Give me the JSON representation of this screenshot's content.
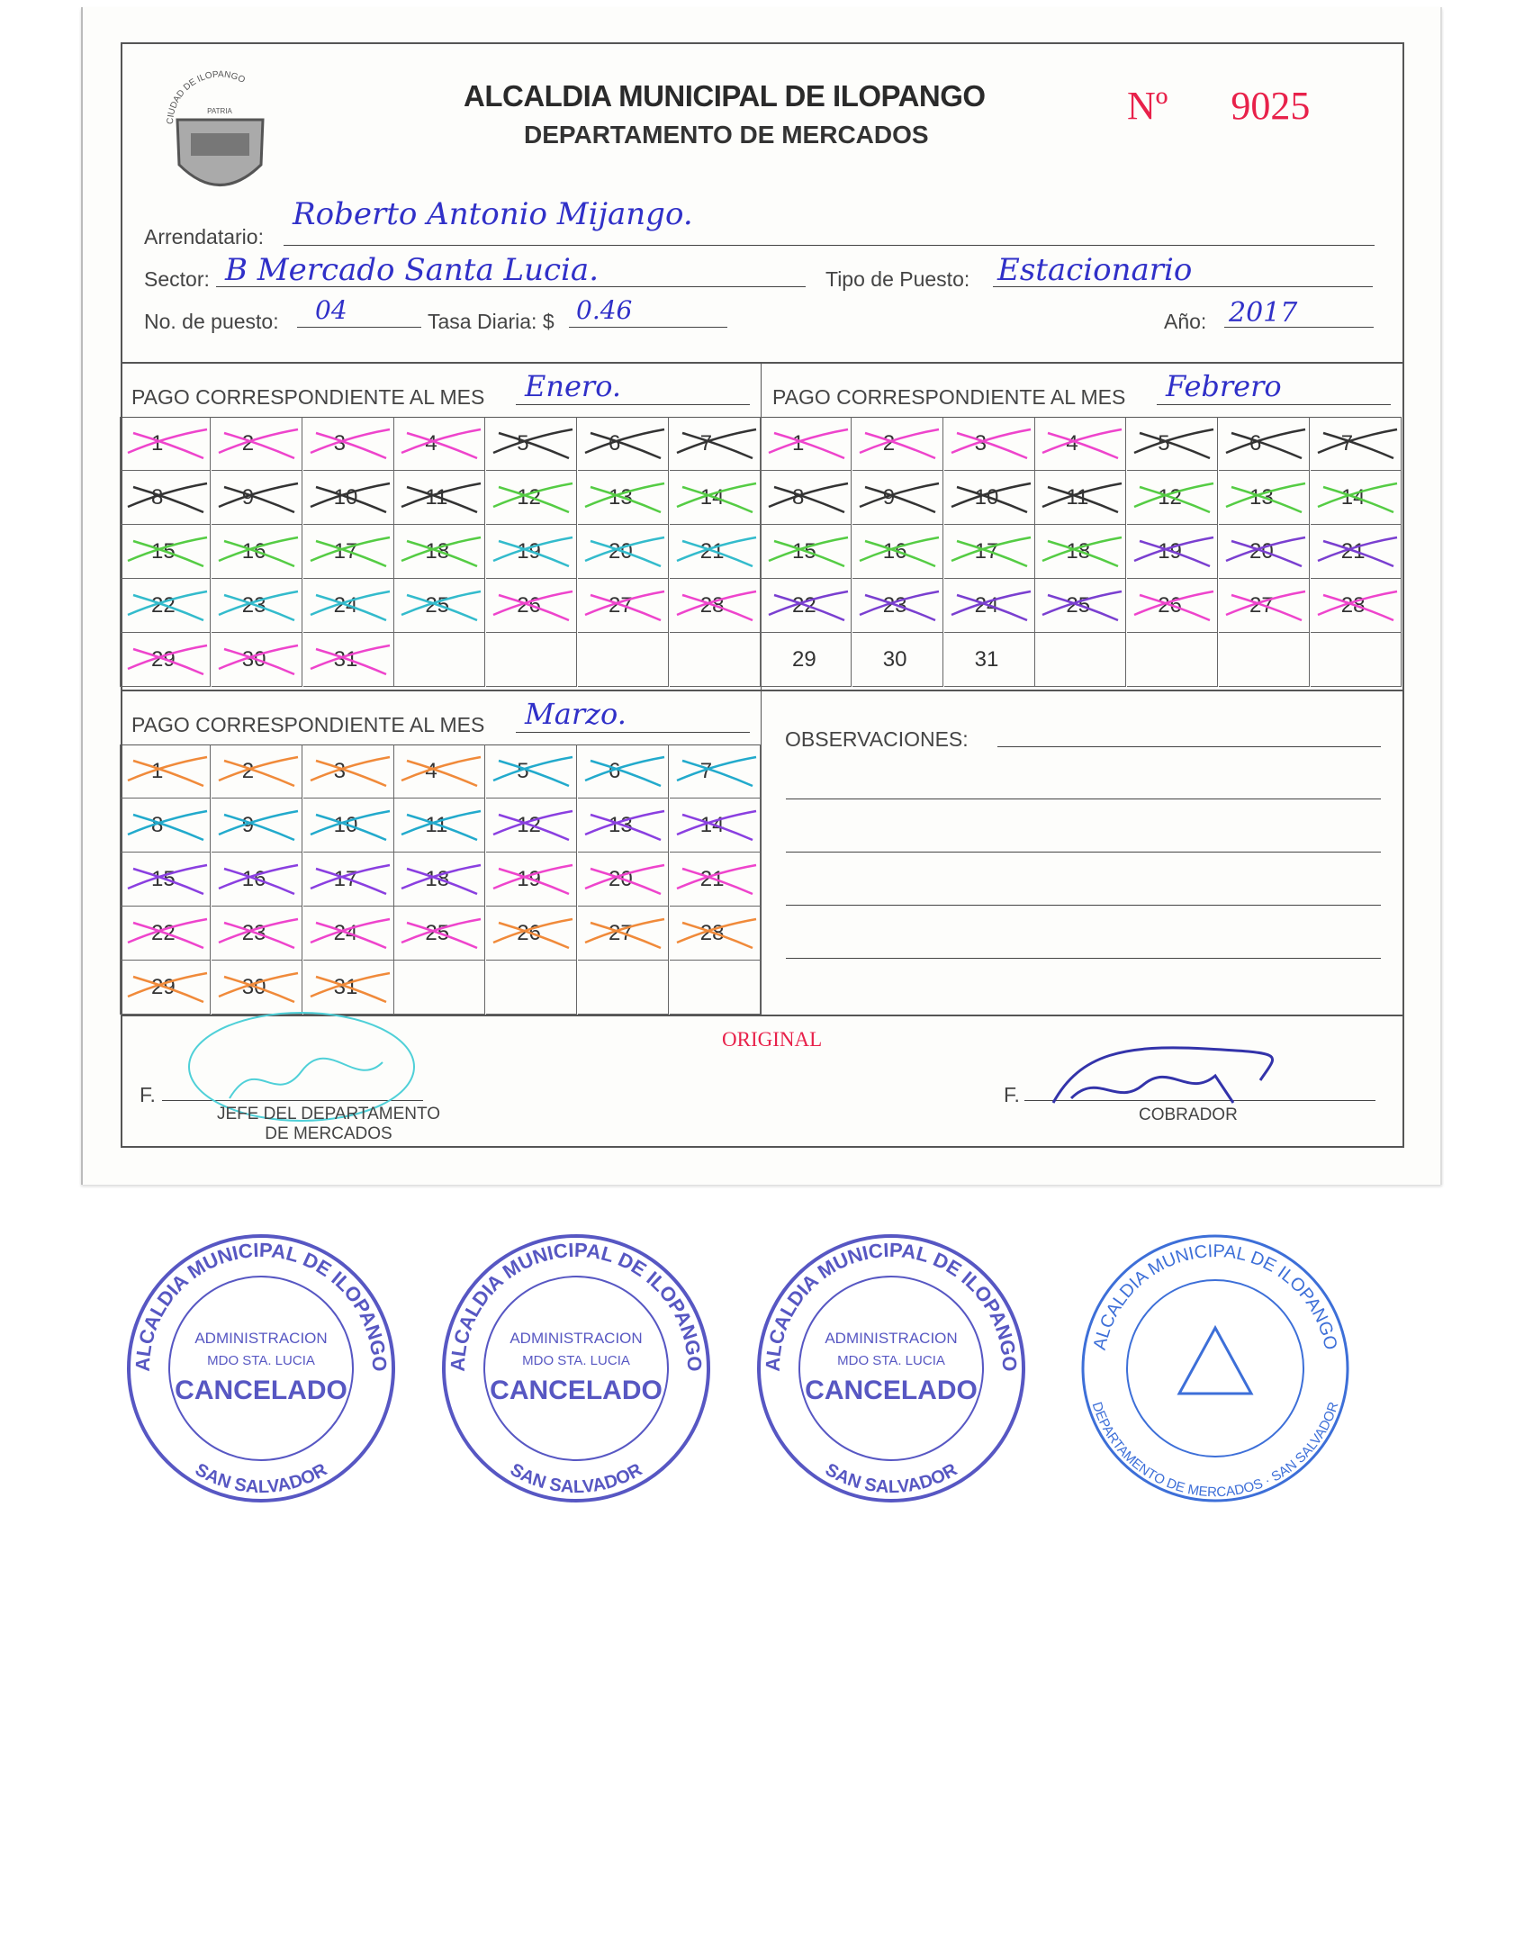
{
  "header": {
    "title": "ALCALDIA MUNICIPAL DE ILOPANGO",
    "subtitle": "DEPARTAMENTO DE MERCADOS",
    "folio_label": "Nº",
    "folio_number": "9025",
    "seal_text": "CIUDAD DE ILOPANGO",
    "seal_motto": "PATRIA"
  },
  "fields": {
    "arrendatario_label": "Arrendatario:",
    "arrendatario_value": "Roberto Antonio Mijango.",
    "sector_label": "Sector:",
    "sector_value": "B Mercado Santa Lucia.",
    "tipo_label": "Tipo de Puesto:",
    "tipo_value": "Estacionario",
    "puesto_label": "No. de puesto:",
    "puesto_value": "04",
    "tasa_label": "Tasa Diaria: $",
    "tasa_value": "0.46",
    "anio_label": "Año:",
    "anio_value": "2017"
  },
  "months": [
    {
      "label": "PAGO CORRESPONDIENTE AL MES",
      "value": "Enero.",
      "days": 31,
      "paid_days": [
        1,
        2,
        3,
        4,
        5,
        6,
        7,
        8,
        9,
        10,
        11,
        12,
        13,
        14,
        15,
        16,
        17,
        18,
        19,
        20,
        21,
        22,
        23,
        24,
        25,
        26,
        27,
        28,
        29,
        30,
        31
      ],
      "mark_colors": [
        "#ee44cc",
        "#333333",
        "#55cc44",
        "#33bbcc"
      ]
    },
    {
      "label": "PAGO CORRESPONDIENTE AL MES",
      "value": "Febrero",
      "days": 31,
      "paid_days": [
        1,
        2,
        3,
        4,
        5,
        6,
        7,
        8,
        9,
        10,
        11,
        12,
        13,
        14,
        15,
        16,
        17,
        18,
        19,
        20,
        21,
        22,
        23,
        24,
        25,
        26,
        27,
        28
      ],
      "mark_colors": [
        "#ee44cc",
        "#333333",
        "#55cc44",
        "#7a3fd0"
      ]
    },
    {
      "label": "PAGO CORRESPONDIENTE AL MES",
      "value": "Marzo.",
      "days": 31,
      "paid_days": [
        1,
        2,
        3,
        4,
        5,
        6,
        7,
        8,
        9,
        10,
        11,
        12,
        13,
        14,
        15,
        16,
        17,
        18,
        19,
        20,
        21,
        22,
        23,
        24,
        25,
        26,
        27,
        28,
        29,
        30,
        31
      ],
      "mark_colors": [
        "#f08a3a",
        "#22aacc",
        "#8a3fe0",
        "#ee44cc"
      ]
    }
  ],
  "observaciones_label": "OBSERVACIONES:",
  "stamp": {
    "ring": "ALCALDIA MUNICIPAL DE ILOPANGO",
    "line1": "ADMINISTRACION",
    "line2": "MDO STA. LUCIA",
    "main": "CANCELADO",
    "bottom": "SAN SALVADOR",
    "color": "#3a3ab8"
  },
  "seal": {
    "ring": "ALCALDIA MUNICIPAL DE ILOPANGO",
    "bottom": "DEPARTAMENTO DE MERCADOS · SAN SALVADOR",
    "color": "#3d6fd8"
  },
  "footer": {
    "original": "ORIGINAL",
    "firma_label_left": "F.",
    "jefe_line1": "JEFE DEL DEPARTAMENTO",
    "jefe_line2": "DE MERCADOS",
    "firma_label_right": "F.",
    "cobrador": "COBRADOR"
  }
}
